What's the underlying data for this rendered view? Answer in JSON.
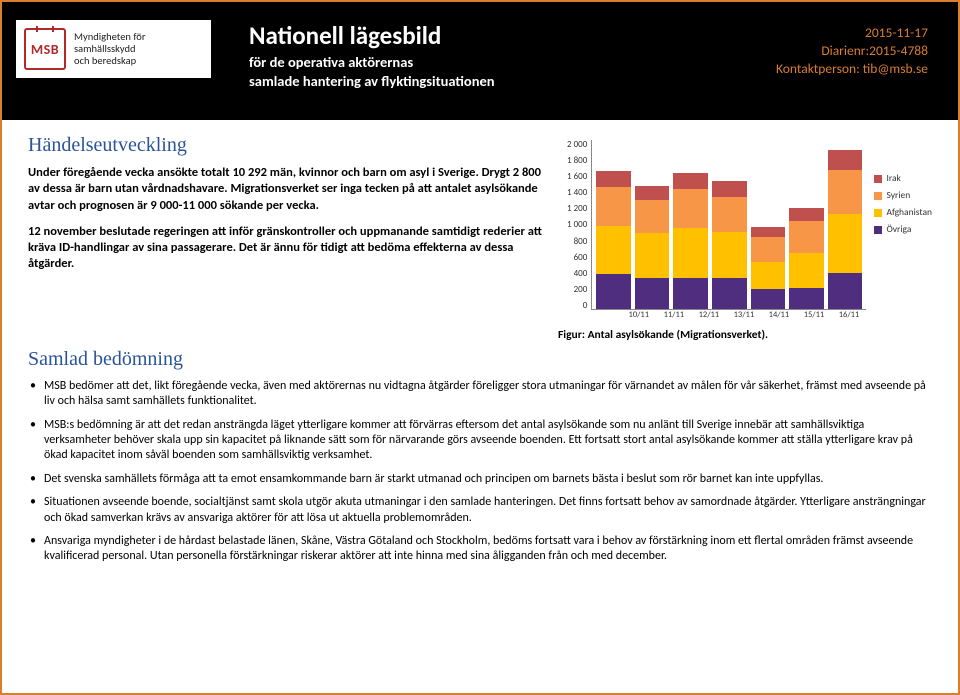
{
  "header": {
    "logo_org_line1": "Myndigheten för",
    "logo_org_line2": "samhällsskydd",
    "logo_org_line3": "och beredskap",
    "logo_mark": "MSB",
    "title": "Nationell lägesbild",
    "subtitle1": "för de operativa aktörernas",
    "subtitle2": "samlade hantering av flyktingsituationen",
    "date": "2015-11-17",
    "diarienr": "Diarienr:2015-4788",
    "contact": "Kontaktperson:  tib@msb.se"
  },
  "section1": {
    "heading": "Händelseutveckling",
    "p1": "Under föregående vecka ansökte totalt 10 292 män, kvinnor och barn om asyl i Sverige. Drygt 2 800 av dessa är barn utan vårdnadshavare. Migrationsverket ser inga tecken på att antalet asylsökande avtar och prognosen är 9 000-11 000 sökande per vecka.",
    "p2": "12 november beslutade regeringen att inför gränskontroller och uppmanande samtidigt rederier att kräva ID-handlingar av sina passagerare. Det är ännu för tidigt att bedöma effekterna av dessa åtgärder."
  },
  "chart": {
    "type": "stacked-bar",
    "ymax": 2000,
    "ytick_step": 200,
    "yticks": [
      "2 000",
      "1 800",
      "1 600",
      "1 400",
      "1 200",
      "1 000",
      "800",
      "600",
      "400",
      "200",
      "0"
    ],
    "categories": [
      "10/11",
      "11/11",
      "12/11",
      "13/11",
      "14/11",
      "15/11",
      "16/11"
    ],
    "series": [
      "Irak",
      "Syrien",
      "Afghanistan",
      "Övriga"
    ],
    "colors": {
      "Irak": "#c0504d",
      "Syrien": "#f79646",
      "Afghanistan": "#ffc000",
      "Övriga": "#4f2d7f"
    },
    "stacks": [
      {
        "Övriga": 410,
        "Afghanistan": 570,
        "Syrien": 450,
        "Irak": 190
      },
      {
        "Övriga": 360,
        "Afghanistan": 540,
        "Syrien": 380,
        "Irak": 170
      },
      {
        "Övriga": 370,
        "Afghanistan": 580,
        "Syrien": 460,
        "Irak": 190
      },
      {
        "Övriga": 370,
        "Afghanistan": 540,
        "Syrien": 410,
        "Irak": 190
      },
      {
        "Övriga": 230,
        "Afghanistan": 320,
        "Syrien": 300,
        "Irak": 110
      },
      {
        "Övriga": 250,
        "Afghanistan": 410,
        "Syrien": 370,
        "Irak": 160
      },
      {
        "Övriga": 420,
        "Afghanistan": 700,
        "Syrien": 510,
        "Irak": 240
      }
    ],
    "caption": "Figur: Antal asylsökande (Migrationsverket)."
  },
  "section2": {
    "heading": "Samlad bedömning",
    "bullets": [
      "MSB bedömer att det, likt föregående vecka, även med aktörernas nu vidtagna åtgärder föreligger stora utmaningar för värnandet av målen för vår säkerhet, främst med avseende på liv och hälsa samt samhällets funktionalitet.",
      "MSB:s bedömning är att det redan ansträngda läget ytterligare kommer att förvärras eftersom det antal asylsökande som nu anlänt till Sverige innebär att samhällsviktiga verksamheter behöver skala upp sin kapacitet på liknande sätt som för närvarande görs avseende boenden. Ett fortsatt stort antal asylsökande kommer att ställa ytterligare krav på ökad kapacitet inom såväl boenden som samhällsviktig verksamhet.",
      "Det svenska samhällets förmåga att ta emot ensamkommande barn är starkt utmanad och principen om barnets bästa i beslut som rör barnet kan inte uppfyllas.",
      "Situationen avseende boende, socialtjänst samt skola utgör akuta utmaningar i den samlade hanteringen. Det finns fortsatt behov av samordnade åtgärder. Ytterligare ansträngningar och ökad samverkan krävs av ansvariga aktörer för att lösa ut aktuella problemområden.",
      "Ansvariga myndigheter i de hårdast belastade länen, Skåne, Västra Götaland och Stockholm, bedöms fortsatt vara i behov av förstärkning inom ett flertal områden främst avseende kvalificerad personal. Utan personella förstärkningar riskerar aktörer att inte hinna med sina åligganden från och med december."
    ]
  }
}
